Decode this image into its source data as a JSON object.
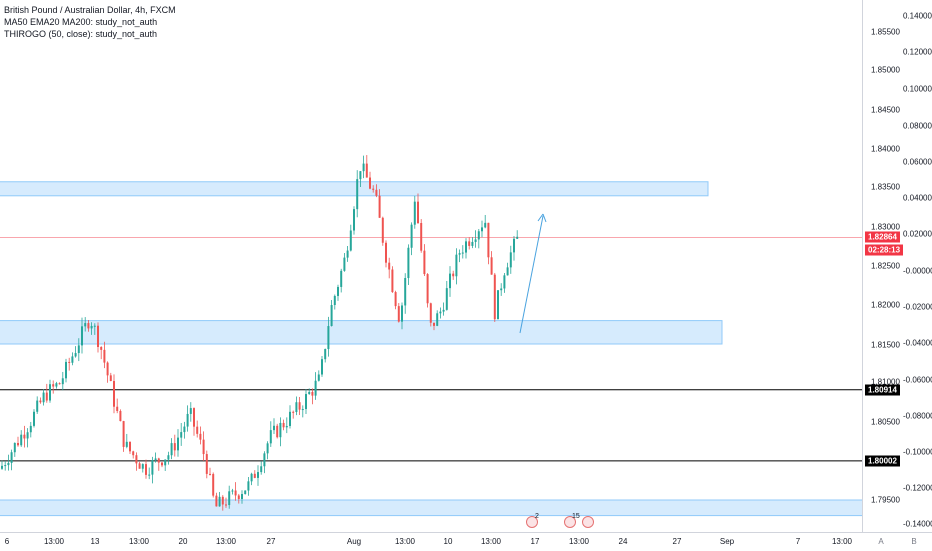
{
  "header": {
    "symbol": "British Pound / Australian Dollar, 4h, FXCM",
    "indicator1": "MA50 EMA20 MA200: study_not_auth",
    "indicator2": "THIROGO (50, close): study_not_auth"
  },
  "price_scale": {
    "prices": [
      "1.85500",
      "1.85000",
      "1.84500",
      "1.84000",
      "1.83500",
      "1.83000",
      "1.82500",
      "1.82000",
      "1.81500",
      "1.81000",
      "1.80500",
      "1.79500"
    ],
    "pcts": [
      "0.14000",
      "0.12000",
      "0.10000",
      "0.08000",
      "0.06000",
      "0.04000",
      "0.02000",
      "-0.00000",
      "-0.02000",
      "-0.04000",
      "-0.06000",
      "-0.08000",
      "-0.10000",
      "-0.12000",
      "-0.14000"
    ],
    "current_price": "1.82864",
    "countdown": "02:28:13",
    "level1": "1.80914",
    "level2": "1.80002"
  },
  "time_scale": {
    "labels": [
      "6",
      "13:00",
      "13",
      "13:00",
      "20",
      "13:00",
      "27",
      "Aug",
      "13:00",
      "10",
      "13:00",
      "17",
      "13:00",
      "24",
      "27",
      "Sep",
      "7",
      "13:00",
      "A",
      "B"
    ]
  },
  "events": {
    "badge1": "2",
    "badge2": "15"
  },
  "colors": {
    "bull": "#26a69a",
    "bear": "#ef5350",
    "zone": "#bbdefb",
    "current_line": "#f23645",
    "arrow": "#4aa3df"
  },
  "chart_data": {
    "type": "candlestick",
    "symbol": "GBP/AUD",
    "timeframe": "4h",
    "ylim": [
      1.793,
      1.859
    ],
    "horizontal_levels": [
      1.80914,
      1.80002
    ],
    "current_price": 1.82864,
    "zones": [
      [
        1.834,
        1.8358
      ],
      [
        1.815,
        1.818
      ],
      [
        1.793,
        1.795
      ]
    ]
  }
}
